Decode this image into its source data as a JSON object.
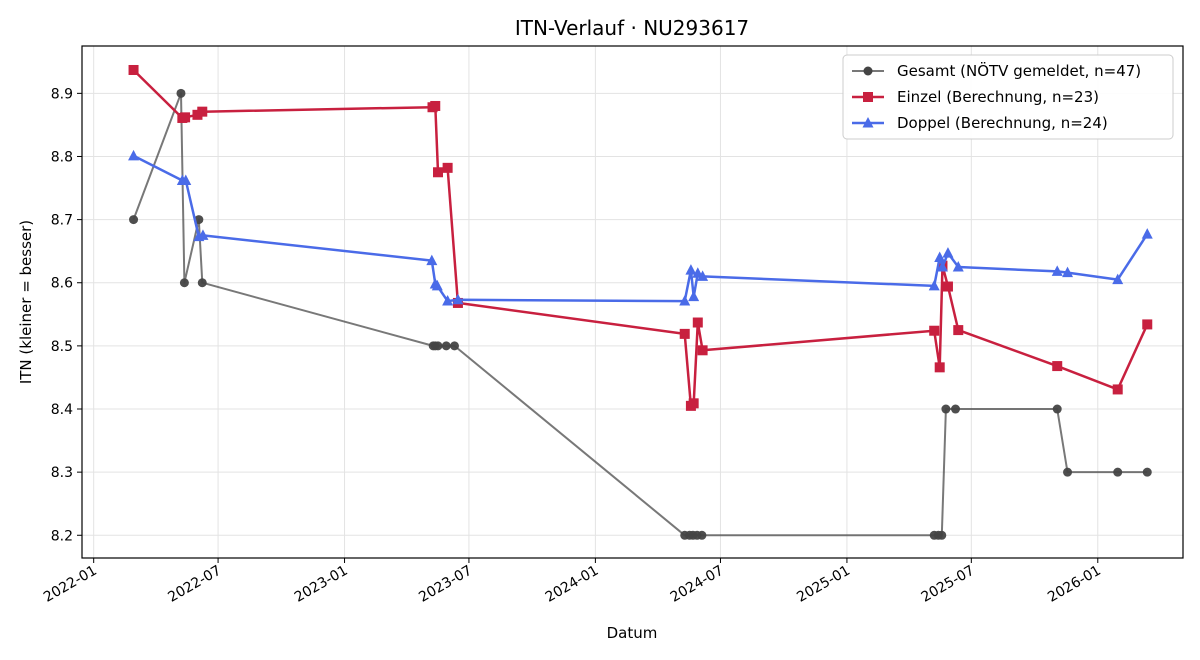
{
  "chart_data": {
    "type": "line",
    "title": "ITN-Verlauf · NU293617",
    "xlabel": "Datum",
    "ylabel": "ITN  (kleiner = besser)",
    "xlim": [
      "2021-12-15",
      "2026-05-05"
    ],
    "ylim": [
      8.164,
      8.975
    ],
    "x_ticks": [
      "2022-01",
      "2022-07",
      "2023-01",
      "2023-07",
      "2024-01",
      "2024-07",
      "2025-01",
      "2025-07",
      "2026-01"
    ],
    "y_ticks": [
      8.2,
      8.3,
      8.4,
      8.5,
      8.6,
      8.7,
      8.8,
      8.9
    ],
    "grid": true,
    "legend_position": "top-right",
    "series": [
      {
        "name": "Gesamt (NÖTV gemeldet, n=47)",
        "color": "#444444",
        "marker": "circle",
        "points": [
          [
            "2022-02-28",
            8.7
          ],
          [
            "2022-05-08",
            8.9
          ],
          [
            "2022-05-13",
            8.6
          ],
          [
            "2022-06-03",
            8.7
          ],
          [
            "2022-06-08",
            8.6
          ],
          [
            "2023-05-10",
            8.5
          ],
          [
            "2023-05-13",
            8.5
          ],
          [
            "2023-05-17",
            8.5
          ],
          [
            "2023-05-29",
            8.5
          ],
          [
            "2023-06-10",
            8.5
          ],
          [
            "2024-05-10",
            8.2
          ],
          [
            "2024-05-17",
            8.2
          ],
          [
            "2024-05-22",
            8.2
          ],
          [
            "2024-05-28",
            8.2
          ],
          [
            "2024-06-04",
            8.2
          ],
          [
            "2025-05-08",
            8.2
          ],
          [
            "2025-05-14",
            8.2
          ],
          [
            "2025-05-19",
            8.2
          ],
          [
            "2025-05-25",
            8.4
          ],
          [
            "2025-06-08",
            8.4
          ],
          [
            "2025-11-03",
            8.4
          ],
          [
            "2025-11-18",
            8.3
          ],
          [
            "2026-01-30",
            8.3
          ],
          [
            "2026-03-14",
            8.3
          ]
        ]
      },
      {
        "name": "Einzel (Berechnung, n=23)",
        "color": "#c8203f",
        "marker": "square",
        "points": [
          [
            "2022-02-28",
            8.937
          ],
          [
            "2022-05-10",
            8.861
          ],
          [
            "2022-05-14",
            8.862
          ],
          [
            "2022-06-01",
            8.866
          ],
          [
            "2022-06-08",
            8.871
          ],
          [
            "2023-05-09",
            8.878
          ],
          [
            "2023-05-13",
            8.88
          ],
          [
            "2023-05-17",
            8.775
          ],
          [
            "2023-05-31",
            8.782
          ],
          [
            "2023-06-15",
            8.568
          ],
          [
            "2024-05-10",
            8.519
          ],
          [
            "2024-05-19",
            8.405
          ],
          [
            "2024-05-23",
            8.409
          ],
          [
            "2024-05-29",
            8.537
          ],
          [
            "2024-06-05",
            8.493
          ],
          [
            "2025-05-08",
            8.524
          ],
          [
            "2025-05-16",
            8.466
          ],
          [
            "2025-05-20",
            8.627
          ],
          [
            "2025-05-28",
            8.594
          ],
          [
            "2025-06-12",
            8.525
          ],
          [
            "2025-11-03",
            8.468
          ],
          [
            "2026-01-30",
            8.431
          ],
          [
            "2026-03-14",
            8.534
          ]
        ]
      },
      {
        "name": "Doppel (Berechnung, n=24)",
        "color": "#4a6be8",
        "marker": "triangle",
        "points": [
          [
            "2022-02-28",
            8.801
          ],
          [
            "2022-05-10",
            8.762
          ],
          [
            "2022-05-15",
            8.762
          ],
          [
            "2022-06-03",
            8.673
          ],
          [
            "2022-06-09",
            8.675
          ],
          [
            "2023-05-08",
            8.635
          ],
          [
            "2023-05-13",
            8.598
          ],
          [
            "2023-05-16",
            8.595
          ],
          [
            "2023-05-31",
            8.571
          ],
          [
            "2023-06-15",
            8.573
          ],
          [
            "2024-05-10",
            8.571
          ],
          [
            "2024-05-19",
            8.62
          ],
          [
            "2024-05-23",
            8.578
          ],
          [
            "2024-05-29",
            8.615
          ],
          [
            "2024-06-05",
            8.61
          ],
          [
            "2025-05-08",
            8.595
          ],
          [
            "2025-05-16",
            8.64
          ],
          [
            "2025-05-20",
            8.625
          ],
          [
            "2025-05-28",
            8.647
          ],
          [
            "2025-06-12",
            8.625
          ],
          [
            "2025-11-03",
            8.618
          ],
          [
            "2025-11-18",
            8.616
          ],
          [
            "2026-01-30",
            8.605
          ],
          [
            "2026-03-14",
            8.677
          ]
        ]
      }
    ]
  }
}
